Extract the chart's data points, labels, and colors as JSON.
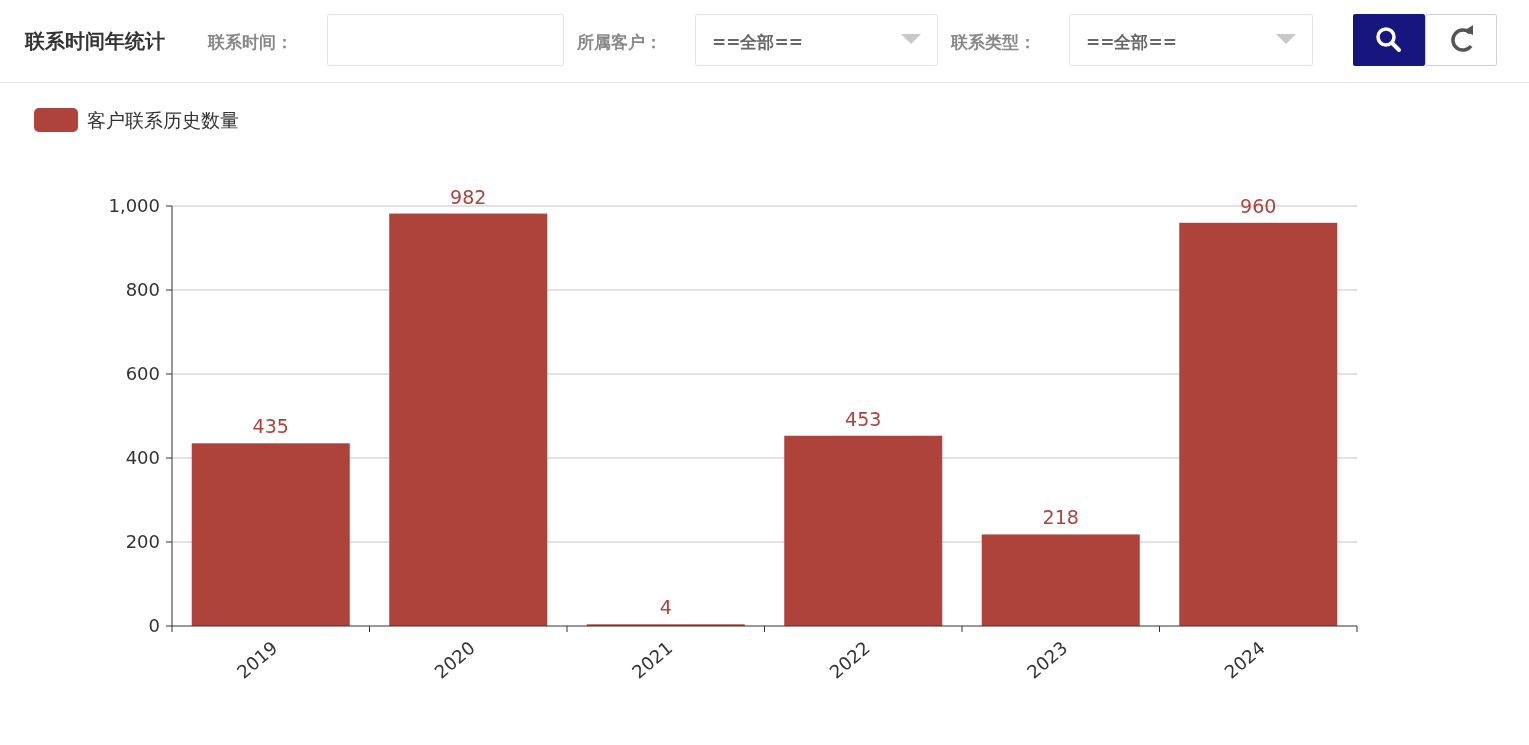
{
  "chart_data": {
    "type": "bar",
    "title": "联系时间年统计",
    "annotations": [
      "联系时间：",
      "所属客户：",
      "==全部==",
      "联系类型：",
      "==全部=="
    ],
    "categories": [
      "2019",
      "2020",
      "2021",
      "2022",
      "2023",
      "2024"
    ],
    "series": [
      {
        "name": "客户联系历史数量",
        "color": "#ad433b",
        "values": [
          435,
          982,
          4,
          453,
          218,
          960
        ]
      }
    ],
    "ylim": [
      0,
      1000
    ],
    "yticks": [
      0,
      200,
      400,
      600,
      800,
      {
        "value": 1000,
        "label": "1,000"
      }
    ],
    "grid": "y",
    "legend": "top left",
    "data_labels": true
  }
}
